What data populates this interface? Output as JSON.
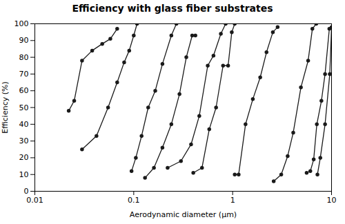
{
  "chart_data": {
    "type": "line",
    "title": "Efficiency with glass fiber substrates",
    "xlabel": "Aerodynamic diameter (μm)",
    "ylabel": "Efficiency (%)",
    "log": "x",
    "xlim": [
      0.01,
      10
    ],
    "ylim": [
      0,
      100
    ],
    "xticks": [
      0.01,
      0.1,
      1,
      10
    ],
    "yticks": [
      0,
      10,
      20,
      30,
      40,
      50,
      60,
      70,
      80,
      90,
      100
    ],
    "grid": false,
    "color": "#1a1a1a",
    "marker": "circle",
    "series": [
      {
        "x": [
          0.022,
          0.025,
          0.03,
          0.038,
          0.048,
          0.058,
          0.068
        ],
        "values": [
          48,
          54,
          78,
          84,
          88,
          91,
          97
        ]
      },
      {
        "x": [
          0.03,
          0.042,
          0.055,
          0.068,
          0.08,
          0.09,
          0.1,
          0.108
        ],
        "values": [
          25,
          33,
          50,
          65,
          77,
          84,
          93,
          100
        ]
      },
      {
        "x": [
          0.095,
          0.105,
          0.12,
          0.14,
          0.165,
          0.195,
          0.24,
          0.27
        ],
        "values": [
          12,
          20,
          33,
          50,
          60,
          76,
          93,
          100
        ]
      },
      {
        "x": [
          0.13,
          0.16,
          0.195,
          0.24,
          0.29,
          0.34,
          0.39,
          0.42
        ],
        "values": [
          8,
          14,
          26,
          40,
          58,
          80,
          93,
          93
        ]
      },
      {
        "x": [
          0.22,
          0.3,
          0.38,
          0.46,
          0.56,
          0.64,
          0.76,
          0.85
        ],
        "values": [
          14,
          18,
          28,
          45,
          75,
          81,
          94,
          100
        ]
      },
      {
        "x": [
          0.4,
          0.49,
          0.58,
          0.68,
          0.8,
          0.9,
          0.98,
          1.05
        ],
        "values": [
          11,
          14,
          37,
          50,
          75,
          75,
          95,
          100
        ]
      },
      {
        "x": [
          1.05,
          1.15,
          1.35,
          1.6,
          1.9,
          2.2,
          2.55,
          2.85
        ],
        "values": [
          10,
          10,
          40,
          55,
          68,
          83,
          95,
          98
        ]
      },
      {
        "x": [
          2.6,
          3.1,
          3.6,
          4.1,
          4.9,
          5.8,
          6.4,
          7.0
        ],
        "values": [
          6,
          10,
          21,
          35,
          62,
          78,
          97,
          100
        ]
      },
      {
        "x": [
          5.6,
          6.1,
          6.6,
          7.1,
          7.9,
          8.6,
          9.5
        ],
        "values": [
          11,
          12,
          19,
          40,
          54,
          70,
          97
        ]
      },
      {
        "x": [
          7.2,
          7.7,
          8.6,
          9.6,
          10.0
        ],
        "values": [
          10,
          20,
          40,
          70,
          98
        ]
      }
    ]
  }
}
